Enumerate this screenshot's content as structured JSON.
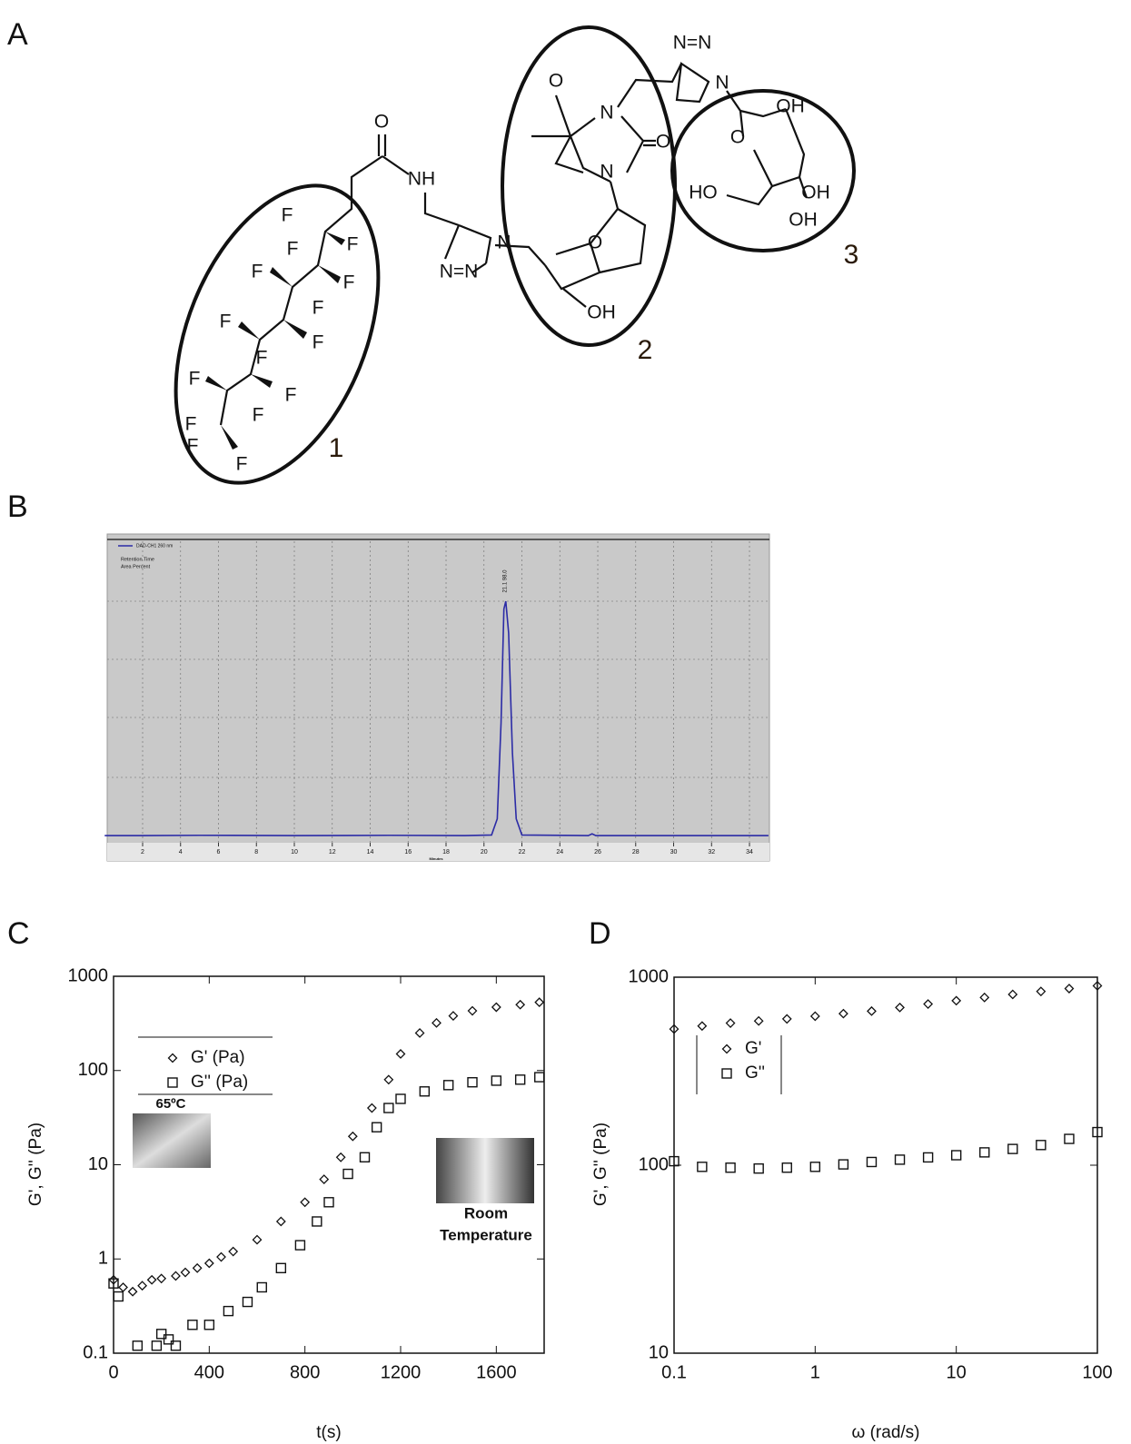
{
  "panel_labels": [
    "A",
    "B",
    "C",
    "D"
  ],
  "structure": {
    "atoms": [
      "O",
      "NH",
      "F",
      "F",
      "F",
      "F",
      "F",
      "F",
      "F",
      "F",
      "F",
      "F",
      "F",
      "F",
      "F",
      "F",
      "F",
      "N",
      "N=N",
      "O",
      "N",
      "O",
      "N",
      "O",
      "OH",
      "N=N",
      "N",
      "OH",
      "O",
      "HO",
      "OH",
      "OH"
    ],
    "regions": [
      "1",
      "2",
      "3"
    ]
  },
  "chart_data": [
    {
      "type": "line",
      "legend_notes": [
        "Retention Time",
        "Area Percent"
      ],
      "xlabel": "Minutes",
      "peak_label": {
        "text": "21.1 98.0",
        "x": 21.1
      },
      "x": [
        0,
        2,
        5,
        10,
        15,
        19,
        20.4,
        20.7,
        20.9,
        21.05,
        21.15,
        21.3,
        21.5,
        21.7,
        22,
        25.5,
        25.7,
        25.9,
        30,
        35
      ],
      "series": [
        {
          "name": "DAD-CH1 260 nm",
          "color": "#2b2ba6",
          "values": [
            2.4,
            2.4,
            2.5,
            2.4,
            2.5,
            2.4,
            2.6,
            8,
            40,
            78,
            80.6,
            70,
            30,
            8,
            2.6,
            2.4,
            3,
            2.4,
            2.4,
            2.4
          ]
        }
      ],
      "xlim": [
        0,
        35
      ],
      "xticks": [
        2,
        4,
        6,
        8,
        10,
        12,
        14,
        16,
        18,
        20,
        22,
        24,
        26,
        28,
        30,
        32,
        34
      ],
      "ylim": [
        0,
        100
      ],
      "grid": true
    },
    {
      "type": "scatter",
      "xlabel": "t(s)",
      "ylabel": "G', G'' (Pa)",
      "annotations": [
        "65ºC",
        "Room",
        "Temperature"
      ],
      "legend": "upper left",
      "series": [
        {
          "name": "G' (Pa)",
          "marker": "diamond",
          "color": "#111111",
          "x": [
            0,
            40,
            80,
            120,
            160,
            200,
            260,
            300,
            350,
            400,
            450,
            500,
            600,
            700,
            800,
            880,
            950,
            1000,
            1080,
            1150,
            1200,
            1280,
            1350,
            1420,
            1500,
            1600,
            1700,
            1780
          ],
          "values": [
            0.6,
            0.5,
            0.45,
            0.52,
            0.6,
            0.62,
            0.66,
            0.72,
            0.8,
            0.9,
            1.05,
            1.2,
            1.6,
            2.5,
            4,
            7,
            12,
            20,
            40,
            80,
            150,
            250,
            320,
            380,
            430,
            470,
            500,
            530
          ]
        },
        {
          "name": "G'' (Pa)",
          "marker": "square",
          "color": "#111111",
          "x": [
            0,
            20,
            100,
            180,
            200,
            230,
            260,
            330,
            400,
            480,
            560,
            620,
            700,
            780,
            850,
            900,
            980,
            1050,
            1100,
            1150,
            1200,
            1300,
            1400,
            1500,
            1600,
            1700,
            1780
          ],
          "values": [
            0.55,
            0.4,
            0.12,
            0.12,
            0.16,
            0.14,
            0.12,
            0.2,
            0.2,
            0.28,
            0.35,
            0.5,
            0.8,
            1.4,
            2.5,
            4,
            8,
            12,
            25,
            40,
            50,
            60,
            70,
            75,
            78,
            80,
            85
          ]
        }
      ],
      "xlim": [
        0,
        1800
      ],
      "xticks": [
        0,
        400,
        800,
        1200,
        1600
      ],
      "ylim": [
        0.1,
        1000
      ],
      "yticks": [
        0.1,
        1,
        10,
        100,
        1000
      ],
      "ylog": true
    },
    {
      "type": "scatter",
      "xlabel": "ω (rad/s)",
      "ylabel": "G', G'' (Pa)",
      "legend": "upper left",
      "series": [
        {
          "name": "G'",
          "marker": "diamond",
          "color": "#111111",
          "x": [
            0.1,
            0.158,
            0.251,
            0.398,
            0.631,
            1,
            1.585,
            2.512,
            3.981,
            6.31,
            10,
            15.85,
            25.12,
            39.81,
            63.1,
            100
          ],
          "values": [
            530,
            550,
            570,
            585,
            600,
            620,
            640,
            660,
            690,
            720,
            750,
            780,
            810,
            840,
            870,
            900
          ]
        },
        {
          "name": "G''",
          "marker": "square",
          "color": "#111111",
          "x": [
            0.1,
            0.158,
            0.251,
            0.398,
            0.631,
            1,
            1.585,
            2.512,
            3.981,
            6.31,
            10,
            15.85,
            25.12,
            39.81,
            63.1,
            100
          ],
          "values": [
            105,
            98,
            97,
            96,
            97,
            98,
            101,
            104,
            107,
            110,
            113,
            117,
            122,
            128,
            138,
            150
          ]
        }
      ],
      "xlim": [
        0.1,
        100
      ],
      "xticks": [
        0.1,
        1,
        10,
        100
      ],
      "xlog": true,
      "ylim": [
        10,
        1000
      ],
      "yticks": [
        10,
        100,
        1000
      ],
      "ylog": true
    }
  ]
}
